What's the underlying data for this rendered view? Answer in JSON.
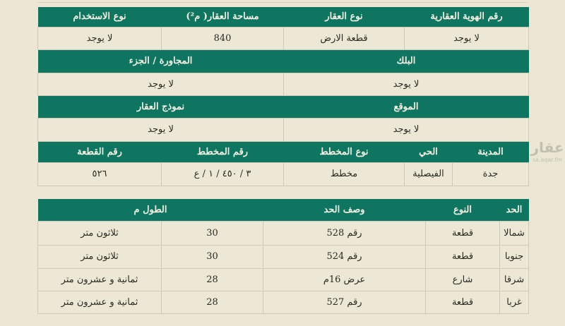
{
  "property_info": {
    "section1": {
      "headers": [
        "رقم الهوية العقارية",
        "نوع العقار",
        "مساحة العقار( م²)",
        "نوع الاستخدام"
      ],
      "values": [
        "لا يوجد",
        "قطعة الارض",
        "840",
        "لا يوجد"
      ]
    },
    "section2": {
      "headers": [
        "البلك",
        "المجاورة / الجزء"
      ],
      "values": [
        "لا يوجد",
        "لا يوجد"
      ]
    },
    "section3": {
      "headers": [
        "الموقع",
        "نموذج العقار"
      ],
      "values": [
        "لا يوجد",
        "لا يوجد"
      ]
    },
    "section4": {
      "headers": [
        "المدينة",
        "الحي",
        "نوع المخطط",
        "رقم المخطط",
        "رقم القطعة"
      ],
      "values": [
        "جدة",
        "الفيصلية",
        "مخطط",
        "٣ / ٤٥٠ / ١ / ع",
        "٥٢٦"
      ]
    }
  },
  "boundaries": {
    "headers": [
      "الحد",
      "النوع",
      "وصف الحد",
      "الطول م"
    ],
    "rows": [
      [
        "شمالا",
        "قطعة",
        "رقم 528",
        "30",
        "ثلاثون متر"
      ],
      [
        "جنوبا",
        "قطعة",
        "رقم 524",
        "30",
        "ثلاثون متر"
      ],
      [
        "شرقا",
        "شارع",
        "عرض 16م",
        "28",
        "ثمانية و عشرون متر"
      ],
      [
        "غربا",
        "قطعة",
        "رقم 527",
        "28",
        "ثمانية و عشرون متر"
      ]
    ]
  },
  "watermark": {
    "logo": "عقار",
    "url": "sa.aqar.fm"
  },
  "colors": {
    "header": "#0e7660",
    "background": "#ebe7d4"
  }
}
